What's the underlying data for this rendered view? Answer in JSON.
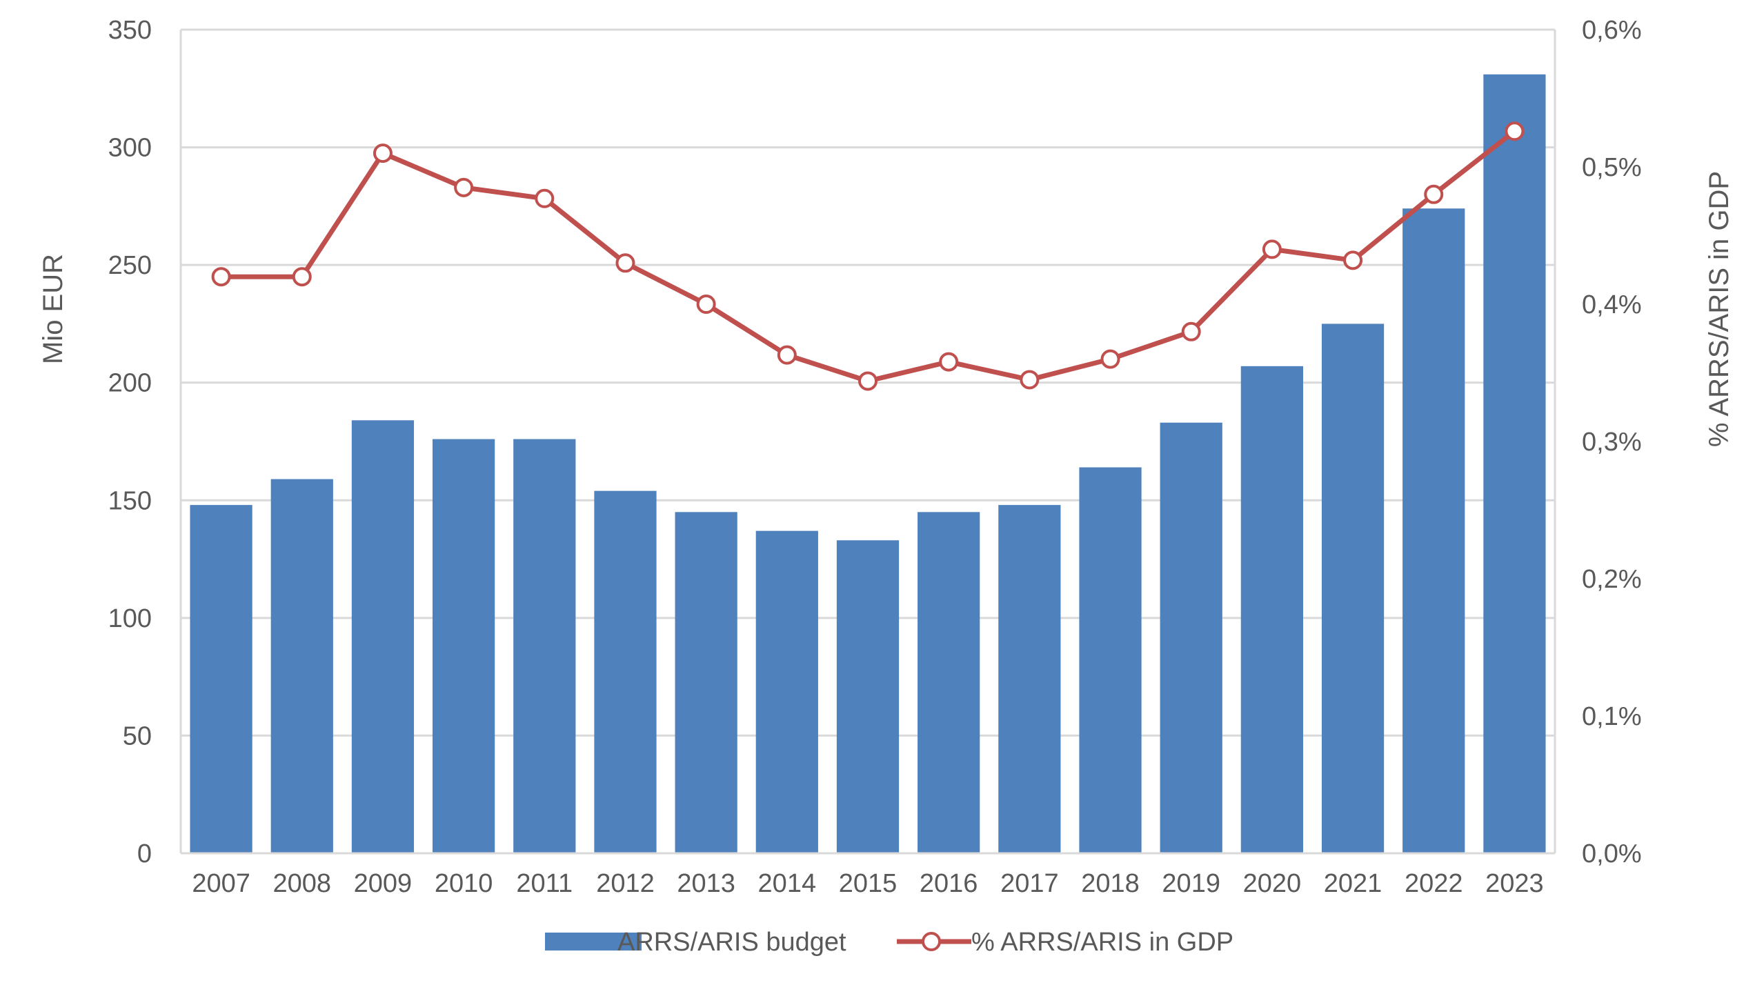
{
  "chart_data": {
    "type": "bar",
    "categories": [
      "2007",
      "2008",
      "2009",
      "2010",
      "2011",
      "2012",
      "2013",
      "2014",
      "2015",
      "2016",
      "2017",
      "2018",
      "2019",
      "2020",
      "2021",
      "2022",
      "2023"
    ],
    "series": [
      {
        "name": "ARRS/ARIS budget",
        "type": "bar",
        "axis": "left",
        "color": "#4f81bd",
        "values": [
          148,
          159,
          184,
          176,
          176,
          154,
          145,
          137,
          133,
          145,
          148,
          164,
          183,
          207,
          225,
          274,
          331
        ]
      },
      {
        "name": "% ARRS/ARIS in GDP",
        "type": "line",
        "axis": "right",
        "color": "#c0504d",
        "values": [
          0.42,
          0.42,
          0.51,
          0.485,
          0.477,
          0.43,
          0.4,
          0.363,
          0.344,
          0.358,
          0.345,
          0.36,
          0.38,
          0.44,
          0.432,
          0.48,
          0.526
        ]
      }
    ],
    "ylabel": "Mio EUR",
    "ylabel_right": "% ARRS/ARIS in GDP",
    "ylim": [
      0,
      350
    ],
    "ylim_right": [
      0,
      0.6
    ],
    "yticks": [
      "0",
      "50",
      "100",
      "150",
      "200",
      "250",
      "300",
      "350"
    ],
    "yticks_right": [
      "0,0%",
      "0,1%",
      "0,2%",
      "0,3%",
      "0,4%",
      "0,5%",
      "0,6%"
    ],
    "grid": true,
    "legend_position": "bottom"
  }
}
